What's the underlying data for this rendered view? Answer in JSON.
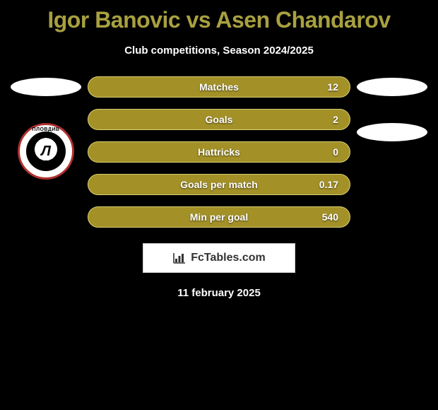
{
  "title": "Igor Banovic vs Asen Chandarov",
  "subtitle": "Club competitions, Season 2024/2025",
  "colors": {
    "title": "#a8a040",
    "bar_fill": "#a39128",
    "bar_border": "#d8cf73",
    "background": "#000000",
    "text": "#ffffff"
  },
  "stats": [
    {
      "label": "Matches",
      "right_value": "12"
    },
    {
      "label": "Goals",
      "right_value": "2"
    },
    {
      "label": "Hattricks",
      "right_value": "0"
    },
    {
      "label": "Goals per match",
      "right_value": "0.17"
    },
    {
      "label": "Min per goal",
      "right_value": "540"
    }
  ],
  "left_badge": {
    "arc_text": "ПЛОВДИВ",
    "letter": "Л"
  },
  "footer": {
    "brand": "FcTables.com",
    "date": "11 february 2025"
  }
}
